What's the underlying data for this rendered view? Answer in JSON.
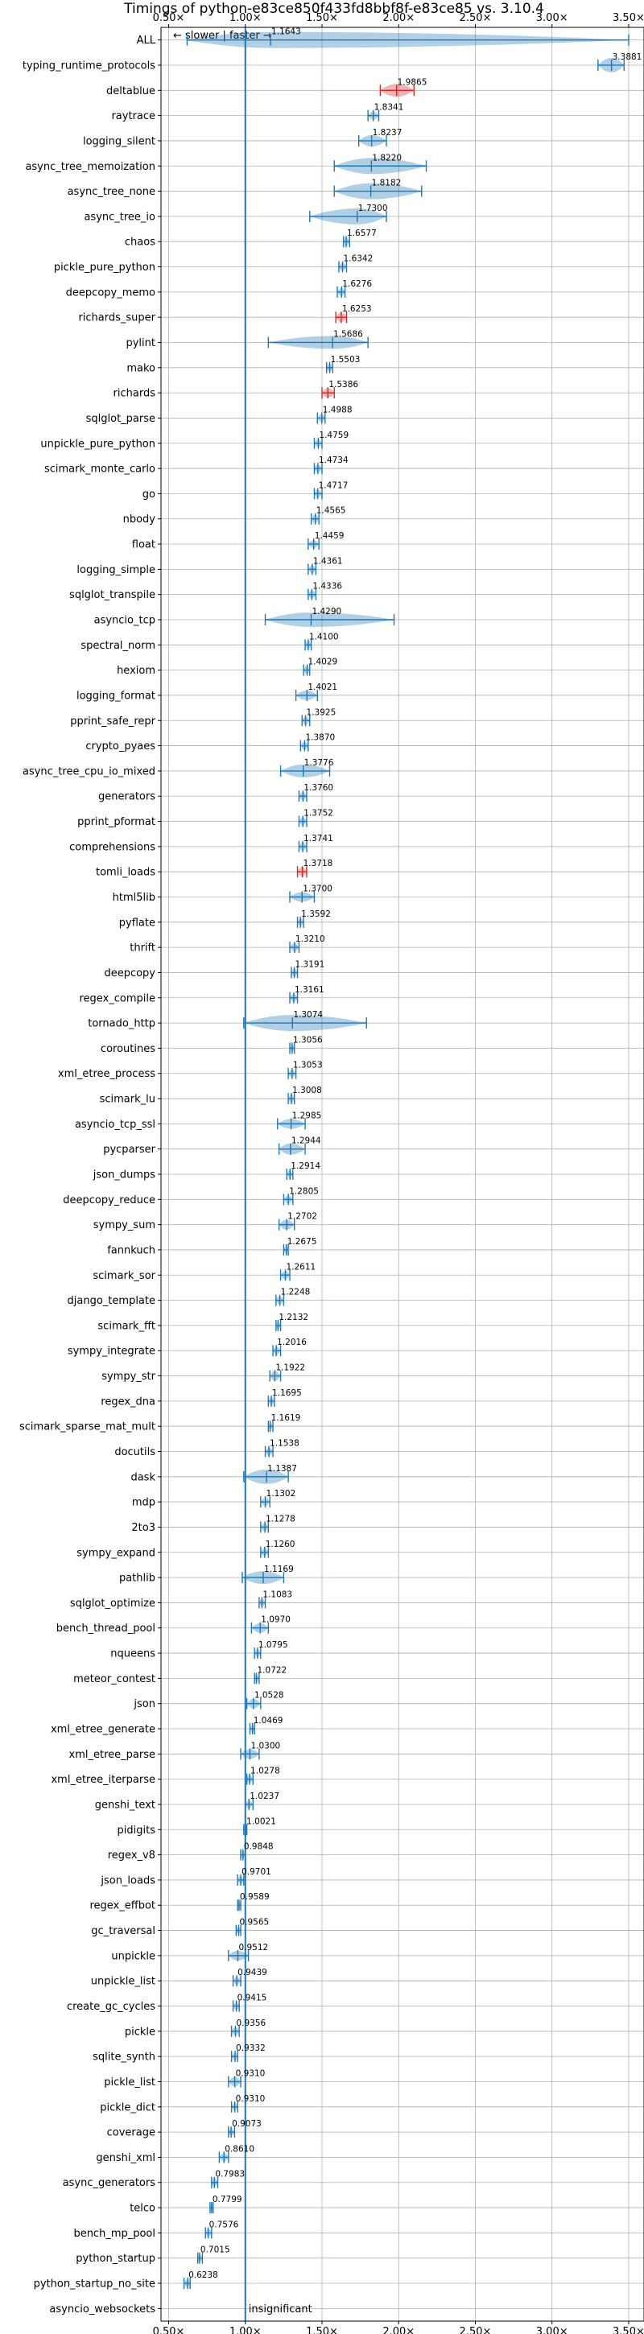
{
  "chart_data": {
    "type": "violin",
    "title": "Timings of python-e83ce850f433fd8bbf8f-e83ce85 vs. 3.10.4",
    "direction_note": "← slower | faster →",
    "xlim": [
      0.45,
      3.6
    ],
    "xticks": [
      0.5,
      1.0,
      1.5,
      2.0,
      2.5,
      3.0,
      3.5
    ],
    "xtick_labels": [
      "0.50×",
      "1.00×",
      "1.50×",
      "2.00×",
      "2.50×",
      "3.00×",
      "3.50×"
    ],
    "reference_line": 1.0,
    "grid": true,
    "colors": {
      "default": "#1f77b4",
      "highlight": "#d62728"
    },
    "benchmarks": [
      {
        "name": "ALL",
        "value": 1.1643,
        "label": "1.1643",
        "min": 0.62,
        "max": 3.5,
        "w": 1.0,
        "color": "default"
      },
      {
        "name": "typing_runtime_protocols",
        "value": 3.3881,
        "label": "3.3881",
        "min": 3.3,
        "max": 3.47,
        "w": 0.9,
        "color": "default"
      },
      {
        "name": "deltablue",
        "value": 1.9865,
        "label": "1.9865",
        "min": 1.88,
        "max": 2.1,
        "w": 0.8,
        "color": "highlight"
      },
      {
        "name": "raytrace",
        "value": 1.8341,
        "label": "1.8341",
        "min": 1.8,
        "max": 1.87,
        "w": 0.5,
        "color": "default"
      },
      {
        "name": "logging_silent",
        "value": 1.8237,
        "label": "1.8237",
        "min": 1.74,
        "max": 1.92,
        "w": 0.7,
        "color": "default"
      },
      {
        "name": "async_tree_memoization",
        "value": 1.822,
        "label": "1.8220",
        "min": 1.58,
        "max": 2.18,
        "w": 1.0,
        "color": "default"
      },
      {
        "name": "async_tree_none",
        "value": 1.8182,
        "label": "1.8182",
        "min": 1.58,
        "max": 2.15,
        "w": 1.0,
        "color": "default"
      },
      {
        "name": "async_tree_io",
        "value": 1.73,
        "label": "1.7300",
        "min": 1.42,
        "max": 1.92,
        "w": 1.0,
        "color": "default"
      },
      {
        "name": "chaos",
        "value": 1.6577,
        "label": "1.6577",
        "min": 1.64,
        "max": 1.68,
        "w": 0.5,
        "color": "default"
      },
      {
        "name": "pickle_pure_python",
        "value": 1.6342,
        "label": "1.6342",
        "min": 1.61,
        "max": 1.66,
        "w": 0.5,
        "color": "default"
      },
      {
        "name": "deepcopy_memo",
        "value": 1.6276,
        "label": "1.6276",
        "min": 1.6,
        "max": 1.65,
        "w": 0.5,
        "color": "default"
      },
      {
        "name": "richards_super",
        "value": 1.6253,
        "label": "1.6253",
        "min": 1.59,
        "max": 1.66,
        "w": 0.6,
        "color": "highlight"
      },
      {
        "name": "pylint",
        "value": 1.5686,
        "label": "1.5686",
        "min": 1.15,
        "max": 1.8,
        "w": 0.8,
        "color": "default"
      },
      {
        "name": "mako",
        "value": 1.5503,
        "label": "1.5503",
        "min": 1.53,
        "max": 1.57,
        "w": 0.5,
        "color": "default"
      },
      {
        "name": "richards",
        "value": 1.5386,
        "label": "1.5386",
        "min": 1.5,
        "max": 1.58,
        "w": 0.6,
        "color": "highlight"
      },
      {
        "name": "sqlglot_parse",
        "value": 1.4988,
        "label": "1.4988",
        "min": 1.47,
        "max": 1.52,
        "w": 0.5,
        "color": "default"
      },
      {
        "name": "unpickle_pure_python",
        "value": 1.4759,
        "label": "1.4759",
        "min": 1.45,
        "max": 1.5,
        "w": 0.5,
        "color": "default"
      },
      {
        "name": "scimark_monte_carlo",
        "value": 1.4734,
        "label": "1.4734",
        "min": 1.45,
        "max": 1.5,
        "w": 0.5,
        "color": "default"
      },
      {
        "name": "go",
        "value": 1.4717,
        "label": "1.4717",
        "min": 1.45,
        "max": 1.5,
        "w": 0.5,
        "color": "default"
      },
      {
        "name": "nbody",
        "value": 1.4565,
        "label": "1.4565",
        "min": 1.43,
        "max": 1.48,
        "w": 0.5,
        "color": "default"
      },
      {
        "name": "float",
        "value": 1.4459,
        "label": "1.4459",
        "min": 1.41,
        "max": 1.48,
        "w": 0.5,
        "color": "default"
      },
      {
        "name": "logging_simple",
        "value": 1.4361,
        "label": "1.4361",
        "min": 1.41,
        "max": 1.46,
        "w": 0.5,
        "color": "default"
      },
      {
        "name": "sqlglot_transpile",
        "value": 1.4336,
        "label": "1.4336",
        "min": 1.41,
        "max": 1.46,
        "w": 0.5,
        "color": "default"
      },
      {
        "name": "asyncio_tcp",
        "value": 1.429,
        "label": "1.4290",
        "min": 1.13,
        "max": 1.97,
        "w": 0.9,
        "color": "default"
      },
      {
        "name": "spectral_norm",
        "value": 1.41,
        "label": "1.4100",
        "min": 1.39,
        "max": 1.43,
        "w": 0.5,
        "color": "default"
      },
      {
        "name": "hexiom",
        "value": 1.4029,
        "label": "1.4029",
        "min": 1.38,
        "max": 1.42,
        "w": 0.5,
        "color": "default"
      },
      {
        "name": "logging_format",
        "value": 1.4021,
        "label": "1.4021",
        "min": 1.33,
        "max": 1.47,
        "w": 0.6,
        "color": "default"
      },
      {
        "name": "pprint_safe_repr",
        "value": 1.3925,
        "label": "1.3925",
        "min": 1.37,
        "max": 1.42,
        "w": 0.5,
        "color": "default"
      },
      {
        "name": "crypto_pyaes",
        "value": 1.387,
        "label": "1.3870",
        "min": 1.36,
        "max": 1.41,
        "w": 0.5,
        "color": "default"
      },
      {
        "name": "async_tree_cpu_io_mixed",
        "value": 1.3776,
        "label": "1.3776",
        "min": 1.23,
        "max": 1.55,
        "w": 0.8,
        "color": "default"
      },
      {
        "name": "generators",
        "value": 1.376,
        "label": "1.3760",
        "min": 1.35,
        "max": 1.4,
        "w": 0.5,
        "color": "default"
      },
      {
        "name": "pprint_pformat",
        "value": 1.3752,
        "label": "1.3752",
        "min": 1.35,
        "max": 1.4,
        "w": 0.5,
        "color": "default"
      },
      {
        "name": "comprehensions",
        "value": 1.3741,
        "label": "1.3741",
        "min": 1.35,
        "max": 1.4,
        "w": 0.5,
        "color": "default"
      },
      {
        "name": "tomli_loads",
        "value": 1.3718,
        "label": "1.3718",
        "min": 1.34,
        "max": 1.4,
        "w": 0.6,
        "color": "highlight"
      },
      {
        "name": "html5lib",
        "value": 1.37,
        "label": "1.3700",
        "min": 1.29,
        "max": 1.45,
        "w": 0.6,
        "color": "default"
      },
      {
        "name": "pyflate",
        "value": 1.3592,
        "label": "1.3592",
        "min": 1.34,
        "max": 1.38,
        "w": 0.5,
        "color": "default"
      },
      {
        "name": "thrift",
        "value": 1.321,
        "label": "1.3210",
        "min": 1.29,
        "max": 1.35,
        "w": 0.5,
        "color": "default"
      },
      {
        "name": "deepcopy",
        "value": 1.3191,
        "label": "1.3191",
        "min": 1.3,
        "max": 1.34,
        "w": 0.5,
        "color": "default"
      },
      {
        "name": "regex_compile",
        "value": 1.3161,
        "label": "1.3161",
        "min": 1.29,
        "max": 1.34,
        "w": 0.5,
        "color": "default"
      },
      {
        "name": "tornado_http",
        "value": 1.3074,
        "label": "1.3074",
        "min": 0.99,
        "max": 1.79,
        "w": 1.0,
        "color": "default"
      },
      {
        "name": "coroutines",
        "value": 1.3056,
        "label": "1.3056",
        "min": 1.29,
        "max": 1.32,
        "w": 0.5,
        "color": "default"
      },
      {
        "name": "xml_etree_process",
        "value": 1.3053,
        "label": "1.3053",
        "min": 1.28,
        "max": 1.33,
        "w": 0.5,
        "color": "default"
      },
      {
        "name": "scimark_lu",
        "value": 1.3008,
        "label": "1.3008",
        "min": 1.28,
        "max": 1.32,
        "w": 0.5,
        "color": "default"
      },
      {
        "name": "asyncio_tcp_ssl",
        "value": 1.2985,
        "label": "1.2985",
        "min": 1.21,
        "max": 1.39,
        "w": 0.6,
        "color": "default"
      },
      {
        "name": "pycparser",
        "value": 1.2944,
        "label": "1.2944",
        "min": 1.22,
        "max": 1.39,
        "w": 0.7,
        "color": "default"
      },
      {
        "name": "json_dumps",
        "value": 1.2914,
        "label": "1.2914",
        "min": 1.27,
        "max": 1.31,
        "w": 0.5,
        "color": "default"
      },
      {
        "name": "deepcopy_reduce",
        "value": 1.2805,
        "label": "1.2805",
        "min": 1.25,
        "max": 1.31,
        "w": 0.5,
        "color": "default"
      },
      {
        "name": "sympy_sum",
        "value": 1.2702,
        "label": "1.2702",
        "min": 1.22,
        "max": 1.32,
        "w": 0.6,
        "color": "default"
      },
      {
        "name": "fannkuch",
        "value": 1.2675,
        "label": "1.2675",
        "min": 1.25,
        "max": 1.28,
        "w": 0.5,
        "color": "default"
      },
      {
        "name": "scimark_sor",
        "value": 1.2611,
        "label": "1.2611",
        "min": 1.23,
        "max": 1.29,
        "w": 0.5,
        "color": "default"
      },
      {
        "name": "django_template",
        "value": 1.2248,
        "label": "1.2248",
        "min": 1.2,
        "max": 1.25,
        "w": 0.5,
        "color": "default"
      },
      {
        "name": "scimark_fft",
        "value": 1.2132,
        "label": "1.2132",
        "min": 1.2,
        "max": 1.23,
        "w": 0.5,
        "color": "default"
      },
      {
        "name": "sympy_integrate",
        "value": 1.2016,
        "label": "1.2016",
        "min": 1.18,
        "max": 1.23,
        "w": 0.5,
        "color": "default"
      },
      {
        "name": "sympy_str",
        "value": 1.1922,
        "label": "1.1922",
        "min": 1.16,
        "max": 1.23,
        "w": 0.6,
        "color": "default"
      },
      {
        "name": "regex_dna",
        "value": 1.1695,
        "label": "1.1695",
        "min": 1.15,
        "max": 1.19,
        "w": 0.5,
        "color": "default"
      },
      {
        "name": "scimark_sparse_mat_mult",
        "value": 1.1619,
        "label": "1.1619",
        "min": 1.15,
        "max": 1.18,
        "w": 0.5,
        "color": "default"
      },
      {
        "name": "docutils",
        "value": 1.1538,
        "label": "1.1538",
        "min": 1.13,
        "max": 1.18,
        "w": 0.5,
        "color": "default"
      },
      {
        "name": "dask",
        "value": 1.1387,
        "label": "1.1387",
        "min": 0.99,
        "max": 1.28,
        "w": 0.9,
        "color": "default"
      },
      {
        "name": "mdp",
        "value": 1.1302,
        "label": "1.1302",
        "min": 1.1,
        "max": 1.16,
        "w": 0.5,
        "color": "default"
      },
      {
        "name": "2to3",
        "value": 1.1278,
        "label": "1.1278",
        "min": 1.1,
        "max": 1.15,
        "w": 0.5,
        "color": "default"
      },
      {
        "name": "sympy_expand",
        "value": 1.126,
        "label": "1.1260",
        "min": 1.1,
        "max": 1.15,
        "w": 0.5,
        "color": "default"
      },
      {
        "name": "pathlib",
        "value": 1.1169,
        "label": "1.1169",
        "min": 0.98,
        "max": 1.25,
        "w": 0.8,
        "color": "default"
      },
      {
        "name": "sqlglot_optimize",
        "value": 1.1083,
        "label": "1.1083",
        "min": 1.09,
        "max": 1.13,
        "w": 0.5,
        "color": "default"
      },
      {
        "name": "bench_thread_pool",
        "value": 1.097,
        "label": "1.0970",
        "min": 1.04,
        "max": 1.15,
        "w": 0.6,
        "color": "default"
      },
      {
        "name": "nqueens",
        "value": 1.0795,
        "label": "1.0795",
        "min": 1.06,
        "max": 1.1,
        "w": 0.5,
        "color": "default"
      },
      {
        "name": "meteor_contest",
        "value": 1.0722,
        "label": "1.0722",
        "min": 1.06,
        "max": 1.09,
        "w": 0.5,
        "color": "default"
      },
      {
        "name": "json",
        "value": 1.0528,
        "label": "1.0528",
        "min": 1.01,
        "max": 1.1,
        "w": 0.6,
        "color": "default"
      },
      {
        "name": "xml_etree_generate",
        "value": 1.0469,
        "label": "1.0469",
        "min": 1.03,
        "max": 1.06,
        "w": 0.5,
        "color": "default"
      },
      {
        "name": "xml_etree_parse",
        "value": 1.03,
        "label": "1.0300",
        "min": 0.97,
        "max": 1.09,
        "w": 0.6,
        "color": "default"
      },
      {
        "name": "xml_etree_iterparse",
        "value": 1.0278,
        "label": "1.0278",
        "min": 1.01,
        "max": 1.05,
        "w": 0.5,
        "color": "default"
      },
      {
        "name": "genshi_text",
        "value": 1.0237,
        "label": "1.0237",
        "min": 1.0,
        "max": 1.05,
        "w": 0.5,
        "color": "default"
      },
      {
        "name": "pidigits",
        "value": 1.0021,
        "label": "1.0021",
        "min": 0.99,
        "max": 1.01,
        "w": 0.5,
        "color": "default"
      },
      {
        "name": "regex_v8",
        "value": 0.9848,
        "label": "0.9848",
        "min": 0.97,
        "max": 1.0,
        "w": 0.5,
        "color": "default"
      },
      {
        "name": "json_loads",
        "value": 0.9701,
        "label": "0.9701",
        "min": 0.95,
        "max": 0.99,
        "w": 0.5,
        "color": "default"
      },
      {
        "name": "regex_effbot",
        "value": 0.9589,
        "label": "0.9589",
        "min": 0.95,
        "max": 0.97,
        "w": 0.5,
        "color": "default"
      },
      {
        "name": "gc_traversal",
        "value": 0.9565,
        "label": "0.9565",
        "min": 0.94,
        "max": 0.97,
        "w": 0.5,
        "color": "default"
      },
      {
        "name": "unpickle",
        "value": 0.9512,
        "label": "0.9512",
        "min": 0.89,
        "max": 1.02,
        "w": 0.6,
        "color": "default"
      },
      {
        "name": "unpickle_list",
        "value": 0.9439,
        "label": "0.9439",
        "min": 0.92,
        "max": 0.97,
        "w": 0.5,
        "color": "default"
      },
      {
        "name": "create_gc_cycles",
        "value": 0.9415,
        "label": "0.9415",
        "min": 0.92,
        "max": 0.96,
        "w": 0.5,
        "color": "default"
      },
      {
        "name": "pickle",
        "value": 0.9356,
        "label": "0.9356",
        "min": 0.91,
        "max": 0.96,
        "w": 0.5,
        "color": "default"
      },
      {
        "name": "sqlite_synth",
        "value": 0.9332,
        "label": "0.9332",
        "min": 0.91,
        "max": 0.95,
        "w": 0.5,
        "color": "default"
      },
      {
        "name": "pickle_list",
        "value": 0.931,
        "label": "0.9310",
        "min": 0.89,
        "max": 0.97,
        "w": 0.6,
        "color": "default"
      },
      {
        "name": "pickle_dict",
        "value": 0.931,
        "label": "0.9310",
        "min": 0.91,
        "max": 0.95,
        "w": 0.5,
        "color": "default"
      },
      {
        "name": "coverage",
        "value": 0.9073,
        "label": "0.9073",
        "min": 0.89,
        "max": 0.93,
        "w": 0.5,
        "color": "default"
      },
      {
        "name": "genshi_xml",
        "value": 0.861,
        "label": "0.8610",
        "min": 0.83,
        "max": 0.89,
        "w": 0.5,
        "color": "default"
      },
      {
        "name": "async_generators",
        "value": 0.7983,
        "label": "0.7983",
        "min": 0.78,
        "max": 0.82,
        "w": 0.5,
        "color": "default"
      },
      {
        "name": "telco",
        "value": 0.7799,
        "label": "0.7799",
        "min": 0.77,
        "max": 0.79,
        "w": 0.5,
        "color": "default"
      },
      {
        "name": "bench_mp_pool",
        "value": 0.7576,
        "label": "0.7576",
        "min": 0.74,
        "max": 0.78,
        "w": 0.5,
        "color": "default"
      },
      {
        "name": "python_startup",
        "value": 0.7015,
        "label": "0.7015",
        "min": 0.69,
        "max": 0.72,
        "w": 0.5,
        "color": "default"
      },
      {
        "name": "python_startup_no_site",
        "value": 0.6238,
        "label": "0.6238",
        "min": 0.6,
        "max": 0.64,
        "w": 0.5,
        "color": "default"
      },
      {
        "name": "asyncio_websockets",
        "value": null,
        "label": "insignificant",
        "min": null,
        "max": null,
        "w": 0,
        "color": "default"
      }
    ]
  }
}
